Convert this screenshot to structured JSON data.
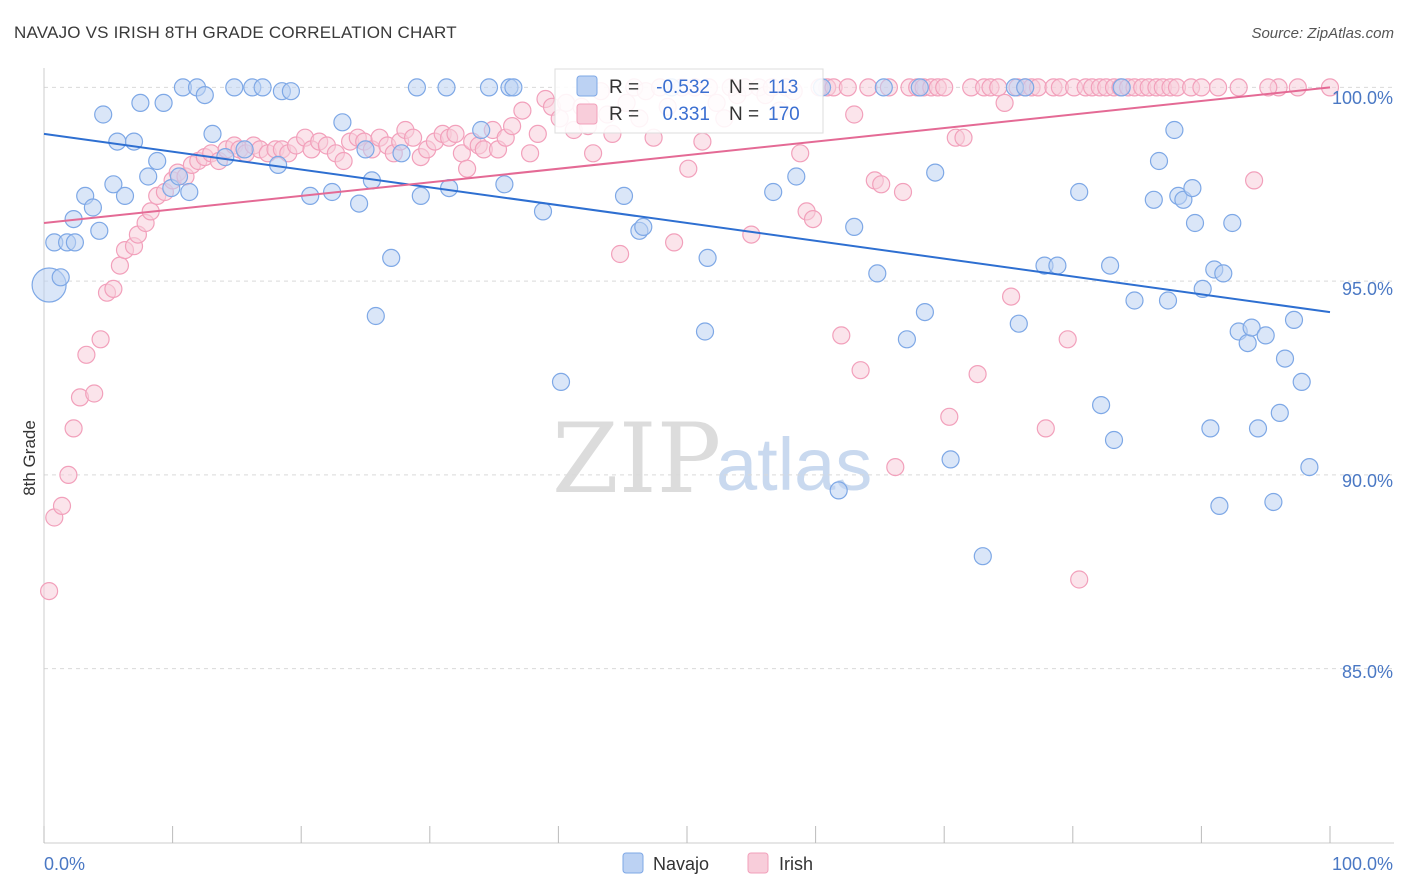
{
  "title": "NAVAJO VS IRISH 8TH GRADE CORRELATION CHART",
  "source": "Source: ZipAtlas.com",
  "watermark": {
    "zip": "ZIP",
    "atlas": "atlas"
  },
  "colors": {
    "navajo": "#7ea8e6",
    "navajo_fill": "#bcd2f3",
    "navajo_line": "#2e6fd1",
    "irish": "#f2a0bb",
    "irish_fill": "#f8cdda",
    "irish_line": "#e46a95",
    "grid": "#d9d9d9",
    "axis_text": "#4a78c4"
  },
  "stats_box": {
    "rows": [
      {
        "series": "Navajo",
        "r_label": "R =",
        "r_value": "-0.532",
        "n_label": "N =",
        "n_value": "113"
      },
      {
        "series": "Irish",
        "r_label": "R =",
        "r_value": "0.331",
        "n_label": "N =",
        "n_value": "170"
      }
    ]
  },
  "legend": {
    "items": [
      {
        "label": "Navajo"
      },
      {
        "label": "Irish"
      }
    ],
    "placement": "bottom-center"
  },
  "chart_data": {
    "type": "scatter",
    "title": "NAVAJO VS IRISH 8TH GRADE CORRELATION CHART",
    "xlabel": "",
    "ylabel": "8th Grade",
    "xlim": [
      0,
      100
    ],
    "ylim": [
      80.5,
      100.5
    ],
    "x_tick_labels": [
      "0.0%",
      "100.0%"
    ],
    "y_ticks": [
      85,
      90,
      95,
      100
    ],
    "y_tick_labels": [
      "85.0%",
      "90.0%",
      "95.0%",
      "100.0%"
    ],
    "grid": true,
    "series": [
      {
        "name": "Navajo",
        "r": -0.532,
        "n": 113,
        "trend": {
          "x": [
            0,
            100
          ],
          "y": [
            98.8,
            94.2
          ]
        },
        "points": [
          [
            0.4,
            94.9
          ],
          [
            1.3,
            95.1
          ],
          [
            0.8,
            96.0
          ],
          [
            1.8,
            96.0
          ],
          [
            2.4,
            96.0
          ],
          [
            2.3,
            96.6
          ],
          [
            3.2,
            97.2
          ],
          [
            3.8,
            96.9
          ],
          [
            4.3,
            96.3
          ],
          [
            4.6,
            99.3
          ],
          [
            5.4,
            97.5
          ],
          [
            5.7,
            98.6
          ],
          [
            6.3,
            97.2
          ],
          [
            7.0,
            98.6
          ],
          [
            7.5,
            99.6
          ],
          [
            8.1,
            97.7
          ],
          [
            8.8,
            98.1
          ],
          [
            9.3,
            99.6
          ],
          [
            9.9,
            97.4
          ],
          [
            10.5,
            97.7
          ],
          [
            10.8,
            100.0
          ],
          [
            11.3,
            97.3
          ],
          [
            11.9,
            100.0
          ],
          [
            12.5,
            99.8
          ],
          [
            13.1,
            98.8
          ],
          [
            14.1,
            98.2
          ],
          [
            14.8,
            100.0
          ],
          [
            15.6,
            98.4
          ],
          [
            16.2,
            100.0
          ],
          [
            17.0,
            100.0
          ],
          [
            18.2,
            98.0
          ],
          [
            18.5,
            99.9
          ],
          [
            19.2,
            99.9
          ],
          [
            20.7,
            97.2
          ],
          [
            22.4,
            97.3
          ],
          [
            23.2,
            99.1
          ],
          [
            24.5,
            97.0
          ],
          [
            25.0,
            98.4
          ],
          [
            25.5,
            97.6
          ],
          [
            25.8,
            94.1
          ],
          [
            27.0,
            95.6
          ],
          [
            27.8,
            98.3
          ],
          [
            29.0,
            100.0
          ],
          [
            29.3,
            97.2
          ],
          [
            31.3,
            100.0
          ],
          [
            31.5,
            97.4
          ],
          [
            34.0,
            98.9
          ],
          [
            34.6,
            100.0
          ],
          [
            35.8,
            97.5
          ],
          [
            36.2,
            100.0
          ],
          [
            36.5,
            100.0
          ],
          [
            38.8,
            96.8
          ],
          [
            40.2,
            92.4
          ],
          [
            45.1,
            97.2
          ],
          [
            46.3,
            96.3
          ],
          [
            46.6,
            96.4
          ],
          [
            48.8,
            100.0
          ],
          [
            51.4,
            93.7
          ],
          [
            51.6,
            95.6
          ],
          [
            56.7,
            97.3
          ],
          [
            58.5,
            97.7
          ],
          [
            60.5,
            100.0
          ],
          [
            61.8,
            89.6
          ],
          [
            63.0,
            96.4
          ],
          [
            64.8,
            95.2
          ],
          [
            65.3,
            100.0
          ],
          [
            67.1,
            93.5
          ],
          [
            68.1,
            100.0
          ],
          [
            68.5,
            94.2
          ],
          [
            69.3,
            97.8
          ],
          [
            70.5,
            90.4
          ],
          [
            73.0,
            87.9
          ],
          [
            75.5,
            100.0
          ],
          [
            75.8,
            93.9
          ],
          [
            76.3,
            100.0
          ],
          [
            77.8,
            95.4
          ],
          [
            78.8,
            95.4
          ],
          [
            80.5,
            97.3
          ],
          [
            82.2,
            91.8
          ],
          [
            82.9,
            95.4
          ],
          [
            83.2,
            90.9
          ],
          [
            83.8,
            100.0
          ],
          [
            84.8,
            94.5
          ],
          [
            86.3,
            97.1
          ],
          [
            86.7,
            98.1
          ],
          [
            87.4,
            94.5
          ],
          [
            87.9,
            98.9
          ],
          [
            88.2,
            97.2
          ],
          [
            88.6,
            97.1
          ],
          [
            89.3,
            97.4
          ],
          [
            89.5,
            96.5
          ],
          [
            90.1,
            94.8
          ],
          [
            90.7,
            91.2
          ],
          [
            91.0,
            95.3
          ],
          [
            91.4,
            89.2
          ],
          [
            91.7,
            95.2
          ],
          [
            92.4,
            96.5
          ],
          [
            92.9,
            93.7
          ],
          [
            93.6,
            93.4
          ],
          [
            93.9,
            93.8
          ],
          [
            94.4,
            91.2
          ],
          [
            95.0,
            93.6
          ],
          [
            95.6,
            89.3
          ],
          [
            96.1,
            91.6
          ],
          [
            96.5,
            93.0
          ],
          [
            97.2,
            94.0
          ],
          [
            97.8,
            92.4
          ],
          [
            98.4,
            90.2
          ]
        ]
      },
      {
        "name": "Irish",
        "r": 0.331,
        "n": 170,
        "trend": {
          "x": [
            0,
            100
          ],
          "y": [
            96.5,
            100.0
          ]
        },
        "points": [
          [
            0.4,
            87.0
          ],
          [
            0.8,
            88.9
          ],
          [
            1.4,
            89.2
          ],
          [
            1.9,
            90.0
          ],
          [
            2.3,
            91.2
          ],
          [
            2.8,
            92.0
          ],
          [
            3.3,
            93.1
          ],
          [
            3.9,
            92.1
          ],
          [
            4.4,
            93.5
          ],
          [
            4.9,
            94.7
          ],
          [
            5.4,
            94.8
          ],
          [
            5.9,
            95.4
          ],
          [
            6.3,
            95.8
          ],
          [
            7.0,
            95.9
          ],
          [
            7.3,
            96.2
          ],
          [
            7.9,
            96.5
          ],
          [
            8.3,
            96.8
          ],
          [
            8.8,
            97.2
          ],
          [
            9.4,
            97.3
          ],
          [
            10.0,
            97.6
          ],
          [
            10.4,
            97.8
          ],
          [
            11.0,
            97.7
          ],
          [
            11.5,
            98.0
          ],
          [
            12.0,
            98.1
          ],
          [
            12.5,
            98.2
          ],
          [
            13.0,
            98.3
          ],
          [
            13.6,
            98.1
          ],
          [
            14.2,
            98.4
          ],
          [
            14.8,
            98.5
          ],
          [
            15.2,
            98.4
          ],
          [
            15.7,
            98.3
          ],
          [
            16.3,
            98.5
          ],
          [
            16.8,
            98.4
          ],
          [
            17.4,
            98.3
          ],
          [
            18.0,
            98.4
          ],
          [
            18.5,
            98.4
          ],
          [
            19.0,
            98.3
          ],
          [
            19.6,
            98.5
          ],
          [
            20.3,
            98.7
          ],
          [
            20.8,
            98.4
          ],
          [
            21.4,
            98.6
          ],
          [
            22.0,
            98.5
          ],
          [
            22.7,
            98.3
          ],
          [
            23.3,
            98.1
          ],
          [
            23.8,
            98.6
          ],
          [
            24.4,
            98.7
          ],
          [
            24.9,
            98.6
          ],
          [
            25.5,
            98.4
          ],
          [
            26.1,
            98.7
          ],
          [
            26.7,
            98.5
          ],
          [
            27.2,
            98.3
          ],
          [
            27.7,
            98.6
          ],
          [
            28.1,
            98.9
          ],
          [
            28.7,
            98.7
          ],
          [
            29.3,
            98.2
          ],
          [
            29.8,
            98.4
          ],
          [
            30.4,
            98.6
          ],
          [
            31.0,
            98.8
          ],
          [
            31.5,
            98.7
          ],
          [
            32.0,
            98.8
          ],
          [
            32.5,
            98.3
          ],
          [
            32.9,
            97.9
          ],
          [
            33.3,
            98.6
          ],
          [
            33.8,
            98.5
          ],
          [
            34.2,
            98.4
          ],
          [
            34.9,
            98.9
          ],
          [
            35.3,
            98.4
          ],
          [
            35.9,
            98.7
          ],
          [
            36.4,
            99.0
          ],
          [
            37.2,
            99.4
          ],
          [
            37.8,
            98.3
          ],
          [
            38.4,
            98.8
          ],
          [
            39.0,
            99.7
          ],
          [
            39.5,
            99.5
          ],
          [
            40.1,
            99.2
          ],
          [
            40.6,
            99.6
          ],
          [
            41.2,
            98.9
          ],
          [
            41.8,
            99.5
          ],
          [
            42.3,
            99.0
          ],
          [
            42.7,
            98.3
          ],
          [
            43.3,
            99.9
          ],
          [
            43.8,
            99.3
          ],
          [
            44.2,
            98.8
          ],
          [
            44.8,
            95.7
          ],
          [
            45.3,
            99.6
          ],
          [
            45.9,
            100.0
          ],
          [
            46.3,
            99.2
          ],
          [
            46.8,
            99.9
          ],
          [
            47.4,
            98.7
          ],
          [
            47.9,
            100.0
          ],
          [
            48.5,
            99.5
          ],
          [
            49.0,
            96.0
          ],
          [
            49.6,
            100.0
          ],
          [
            50.1,
            97.9
          ],
          [
            50.6,
            100.0
          ],
          [
            51.2,
            98.6
          ],
          [
            51.7,
            100.0
          ],
          [
            52.3,
            99.6
          ],
          [
            52.9,
            99.2
          ],
          [
            53.4,
            100.0
          ],
          [
            53.9,
            99.8
          ],
          [
            54.5,
            100.0
          ],
          [
            55.0,
            96.2
          ],
          [
            55.6,
            100.0
          ],
          [
            56.1,
            99.8
          ],
          [
            56.6,
            100.0
          ],
          [
            57.2,
            99.4
          ],
          [
            57.7,
            100.0
          ],
          [
            58.3,
            99.9
          ],
          [
            58.8,
            98.3
          ],
          [
            59.3,
            96.8
          ],
          [
            59.8,
            96.6
          ],
          [
            60.3,
            100.0
          ],
          [
            60.9,
            100.0
          ],
          [
            61.4,
            100.0
          ],
          [
            62.0,
            93.6
          ],
          [
            62.5,
            100.0
          ],
          [
            63.0,
            99.3
          ],
          [
            63.5,
            92.7
          ],
          [
            64.1,
            100.0
          ],
          [
            64.6,
            97.6
          ],
          [
            65.1,
            97.5
          ],
          [
            65.7,
            100.0
          ],
          [
            66.2,
            90.2
          ],
          [
            66.8,
            97.3
          ],
          [
            67.3,
            100.0
          ],
          [
            67.9,
            100.0
          ],
          [
            68.4,
            100.0
          ],
          [
            69.0,
            100.0
          ],
          [
            69.5,
            100.0
          ],
          [
            70.0,
            100.0
          ],
          [
            70.4,
            91.5
          ],
          [
            70.9,
            98.7
          ],
          [
            71.5,
            98.7
          ],
          [
            72.1,
            100.0
          ],
          [
            72.6,
            92.6
          ],
          [
            73.1,
            100.0
          ],
          [
            73.6,
            100.0
          ],
          [
            74.2,
            100.0
          ],
          [
            74.7,
            99.6
          ],
          [
            75.2,
            94.6
          ],
          [
            75.7,
            100.0
          ],
          [
            76.3,
            100.0
          ],
          [
            76.8,
            100.0
          ],
          [
            77.3,
            100.0
          ],
          [
            77.9,
            91.2
          ],
          [
            78.5,
            100.0
          ],
          [
            79.0,
            100.0
          ],
          [
            79.6,
            93.5
          ],
          [
            80.1,
            100.0
          ],
          [
            80.5,
            87.3
          ],
          [
            81.0,
            100.0
          ],
          [
            81.5,
            100.0
          ],
          [
            82.1,
            100.0
          ],
          [
            82.6,
            100.0
          ],
          [
            83.2,
            100.0
          ],
          [
            83.7,
            100.0
          ],
          [
            84.3,
            100.0
          ],
          [
            84.8,
            100.0
          ],
          [
            85.4,
            100.0
          ],
          [
            85.9,
            100.0
          ],
          [
            86.5,
            100.0
          ],
          [
            87.0,
            100.0
          ],
          [
            87.6,
            100.0
          ],
          [
            88.1,
            100.0
          ],
          [
            89.2,
            100.0
          ],
          [
            90.0,
            100.0
          ],
          [
            91.3,
            100.0
          ],
          [
            92.9,
            100.0
          ],
          [
            94.1,
            97.6
          ],
          [
            96.0,
            100.0
          ],
          [
            97.5,
            100.0
          ],
          [
            100.0,
            100.0
          ],
          [
            95.2,
            100.0
          ]
        ]
      }
    ]
  }
}
